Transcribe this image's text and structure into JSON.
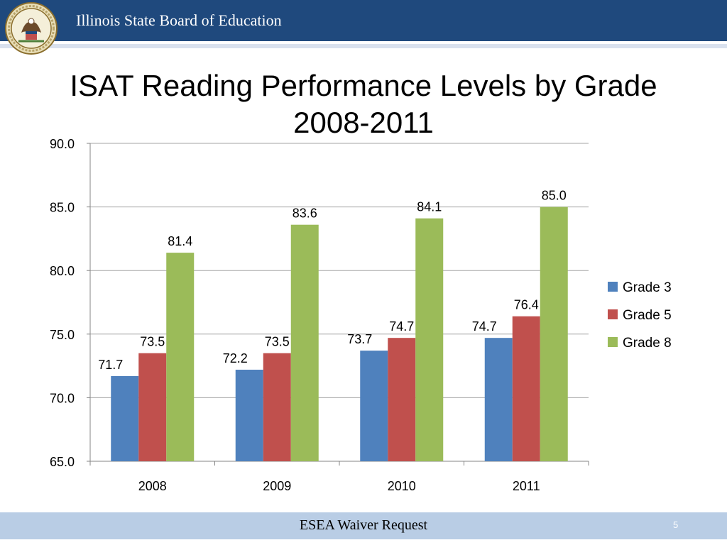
{
  "header": {
    "title": "Illinois State Board of Education",
    "seal_icon": "illinois-state-seal-icon"
  },
  "slide": {
    "title_line1": "ISAT Reading Performance Levels by Grade",
    "title_line2": "2008-2011"
  },
  "footer": {
    "text": "ESEA Waiver Request",
    "page_number": "5"
  },
  "colors": {
    "header_bg": "#1f497d",
    "footer_bg": "#b9cde5"
  },
  "chart_data": {
    "type": "bar",
    "categories": [
      "2008",
      "2009",
      "2010",
      "2011"
    ],
    "series": [
      {
        "name": "Grade 3",
        "color": "#4f81bd",
        "values": [
          71.7,
          72.2,
          73.7,
          74.7
        ],
        "labels": [
          "71.7",
          "72.2",
          "73.7",
          "74.7"
        ]
      },
      {
        "name": "Grade 5",
        "color": "#c0504d",
        "values": [
          73.5,
          73.5,
          74.7,
          76.4
        ],
        "labels": [
          "73.5",
          "73.5",
          "74.7",
          "76.4"
        ]
      },
      {
        "name": "Grade 8",
        "color": "#9bbb59",
        "values": [
          81.4,
          83.6,
          84.1,
          85.0
        ],
        "labels": [
          "81.4",
          "83.6",
          "84.1",
          "85.0"
        ]
      }
    ],
    "ylim": [
      65,
      90
    ],
    "yticks": [
      {
        "value": 90,
        "label": "90.0"
      },
      {
        "value": 85,
        "label": "85.0"
      },
      {
        "value": 80,
        "label": "80.0"
      },
      {
        "value": 75,
        "label": "75.0"
      },
      {
        "value": 70,
        "label": "70.0"
      },
      {
        "value": 65,
        "label": "65.0"
      }
    ],
    "grid": true,
    "legend": "right"
  }
}
